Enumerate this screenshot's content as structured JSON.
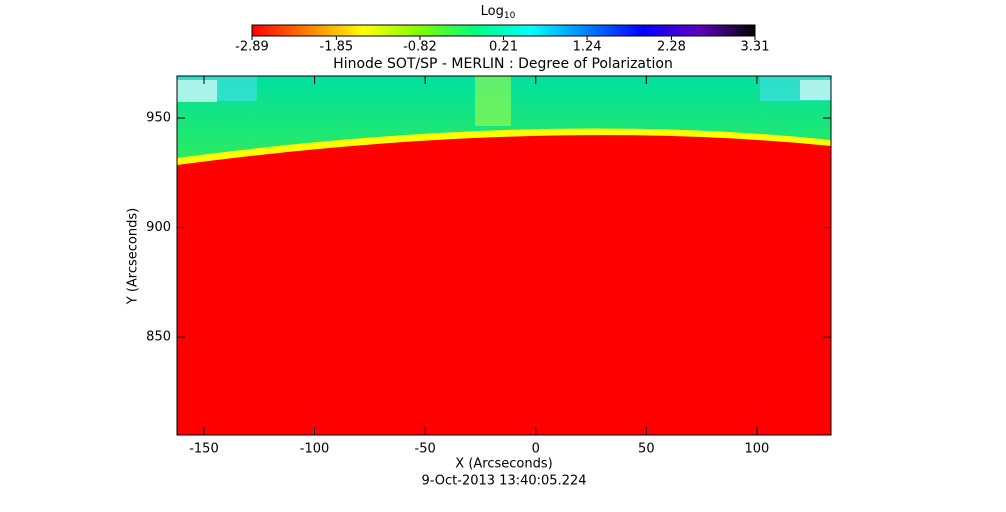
{
  "chart_data": {
    "type": "image",
    "title": "Hinode SOT/SP - MERLIN : Degree of Polarization",
    "x_label": "X (Arcseconds)",
    "y_label": "Y (Arcseconds)",
    "footer": "9-Oct-2013 13:40:05.224",
    "xlim": [
      -162.2,
      133.5
    ],
    "xticks": [
      -150,
      -100,
      -50,
      0,
      50,
      100
    ],
    "ylim": [
      805.3,
      969.2
    ],
    "yticks": [
      850,
      900,
      950
    ],
    "colorbar": {
      "label": "Log",
      "label_subscript": "10",
      "lim": [
        -2.89,
        3.31
      ],
      "ticks": [
        -2.89,
        -1.85,
        -0.82,
        0.21,
        1.24,
        2.28,
        3.31
      ],
      "colors": [
        "#ff0000",
        "#ff8000",
        "#ffff00",
        "#80ff00",
        "#00ff80",
        "#00ffff",
        "#0080ff",
        "#0000ff",
        "#6000c0",
        "#000000"
      ]
    }
  }
}
